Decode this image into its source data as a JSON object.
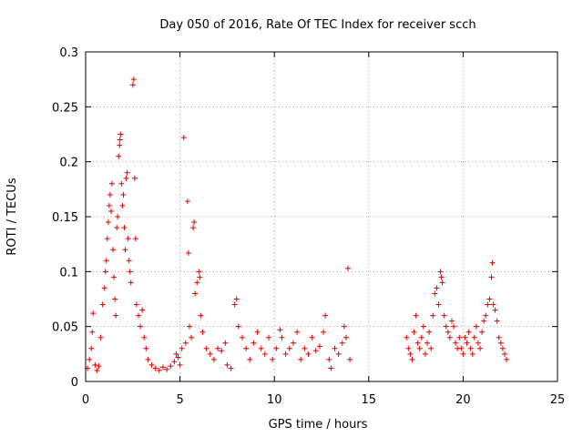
{
  "chart_data": {
    "type": "scatter",
    "title": "Day 050 of 2016, Rate Of TEC Index for receiver scch",
    "xlabel": "GPS time / hours",
    "ylabel": "ROTI / TECUs",
    "xlim": [
      0,
      25
    ],
    "ylim": [
      0,
      0.3
    ],
    "xticks": [
      0,
      5,
      10,
      15,
      20,
      25
    ],
    "xtick_labels": [
      "0",
      "5",
      "10",
      "15",
      "20",
      "25"
    ],
    "yticks": [
      0,
      0.05,
      0.1,
      0.15,
      0.2,
      0.25,
      0.3
    ],
    "ytick_labels": [
      "0",
      "0.05",
      "0.1",
      "0.15",
      "0.2",
      "0.25",
      "0.3"
    ],
    "grid": true,
    "marker": "plus",
    "color": "#e00000",
    "points": [
      [
        0.1,
        0.012
      ],
      [
        0.2,
        0.02
      ],
      [
        0.3,
        0.03
      ],
      [
        0.35,
        0.045
      ],
      [
        0.4,
        0.062
      ],
      [
        0.5,
        0.015
      ],
      [
        0.6,
        0.01
      ],
      [
        0.7,
        0.014
      ],
      [
        0.8,
        0.04
      ],
      [
        0.9,
        0.07
      ],
      [
        1.0,
        0.085
      ],
      [
        1.05,
        0.1
      ],
      [
        1.1,
        0.11
      ],
      [
        1.15,
        0.13
      ],
      [
        1.2,
        0.145
      ],
      [
        1.25,
        0.16
      ],
      [
        1.3,
        0.17
      ],
      [
        1.35,
        0.155
      ],
      [
        1.4,
        0.18
      ],
      [
        1.45,
        0.12
      ],
      [
        1.5,
        0.095
      ],
      [
        1.55,
        0.075
      ],
      [
        1.6,
        0.06
      ],
      [
        1.65,
        0.14
      ],
      [
        1.7,
        0.15
      ],
      [
        1.75,
        0.205
      ],
      [
        1.8,
        0.215
      ],
      [
        1.82,
        0.22
      ],
      [
        1.85,
        0.225
      ],
      [
        1.9,
        0.18
      ],
      [
        1.95,
        0.16
      ],
      [
        2.0,
        0.17
      ],
      [
        2.05,
        0.14
      ],
      [
        2.1,
        0.12
      ],
      [
        2.15,
        0.185
      ],
      [
        2.2,
        0.19
      ],
      [
        2.25,
        0.13
      ],
      [
        2.3,
        0.11
      ],
      [
        2.35,
        0.1
      ],
      [
        2.4,
        0.09
      ],
      [
        2.5,
        0.27
      ],
      [
        2.55,
        0.275
      ],
      [
        2.6,
        0.185
      ],
      [
        2.65,
        0.13
      ],
      [
        2.7,
        0.07
      ],
      [
        2.8,
        0.06
      ],
      [
        2.9,
        0.05
      ],
      [
        3.0,
        0.065
      ],
      [
        3.1,
        0.04
      ],
      [
        3.2,
        0.03
      ],
      [
        3.3,
        0.02
      ],
      [
        3.5,
        0.015
      ],
      [
        3.7,
        0.012
      ],
      [
        3.9,
        0.01
      ],
      [
        4.1,
        0.013
      ],
      [
        4.3,
        0.011
      ],
      [
        4.5,
        0.014
      ],
      [
        4.7,
        0.018
      ],
      [
        4.8,
        0.025
      ],
      [
        4.9,
        0.022
      ],
      [
        5.0,
        0.015
      ],
      [
        5.1,
        0.03
      ],
      [
        5.2,
        0.222
      ],
      [
        5.3,
        0.035
      ],
      [
        5.4,
        0.164
      ],
      [
        5.45,
        0.117
      ],
      [
        5.5,
        0.05
      ],
      [
        5.6,
        0.04
      ],
      [
        5.7,
        0.14
      ],
      [
        5.75,
        0.145
      ],
      [
        5.8,
        0.08
      ],
      [
        5.9,
        0.09
      ],
      [
        6.0,
        0.1
      ],
      [
        6.05,
        0.095
      ],
      [
        6.1,
        0.06
      ],
      [
        6.2,
        0.045
      ],
      [
        6.4,
        0.03
      ],
      [
        6.6,
        0.025
      ],
      [
        6.8,
        0.02
      ],
      [
        7.0,
        0.03
      ],
      [
        7.2,
        0.028
      ],
      [
        7.4,
        0.035
      ],
      [
        7.5,
        0.015
      ],
      [
        7.7,
        0.012
      ],
      [
        7.9,
        0.07
      ],
      [
        8.0,
        0.075
      ],
      [
        8.1,
        0.05
      ],
      [
        8.3,
        0.04
      ],
      [
        8.5,
        0.03
      ],
      [
        8.7,
        0.02
      ],
      [
        8.9,
        0.035
      ],
      [
        9.1,
        0.045
      ],
      [
        9.3,
        0.03
      ],
      [
        9.5,
        0.025
      ],
      [
        9.7,
        0.04
      ],
      [
        9.9,
        0.02
      ],
      [
        10.1,
        0.03
      ],
      [
        10.3,
        0.047
      ],
      [
        10.4,
        0.04
      ],
      [
        10.6,
        0.025
      ],
      [
        10.8,
        0.03
      ],
      [
        11.0,
        0.035
      ],
      [
        11.2,
        0.045
      ],
      [
        11.4,
        0.02
      ],
      [
        11.6,
        0.03
      ],
      [
        11.8,
        0.025
      ],
      [
        12.0,
        0.04
      ],
      [
        12.2,
        0.028
      ],
      [
        12.4,
        0.032
      ],
      [
        12.6,
        0.045
      ],
      [
        12.7,
        0.06
      ],
      [
        12.9,
        0.02
      ],
      [
        13.0,
        0.012
      ],
      [
        13.2,
        0.03
      ],
      [
        13.4,
        0.025
      ],
      [
        13.6,
        0.035
      ],
      [
        13.7,
        0.05
      ],
      [
        13.8,
        0.04
      ],
      [
        13.9,
        0.103
      ],
      [
        14.0,
        0.02
      ],
      [
        17.0,
        0.04
      ],
      [
        17.1,
        0.03
      ],
      [
        17.2,
        0.025
      ],
      [
        17.3,
        0.02
      ],
      [
        17.4,
        0.045
      ],
      [
        17.5,
        0.06
      ],
      [
        17.6,
        0.035
      ],
      [
        17.7,
        0.03
      ],
      [
        17.8,
        0.04
      ],
      [
        17.9,
        0.05
      ],
      [
        18.0,
        0.025
      ],
      [
        18.1,
        0.035
      ],
      [
        18.2,
        0.045
      ],
      [
        18.3,
        0.03
      ],
      [
        18.4,
        0.06
      ],
      [
        18.5,
        0.08
      ],
      [
        18.6,
        0.085
      ],
      [
        18.7,
        0.07
      ],
      [
        18.8,
        0.1
      ],
      [
        18.85,
        0.095
      ],
      [
        18.9,
        0.09
      ],
      [
        19.0,
        0.06
      ],
      [
        19.1,
        0.05
      ],
      [
        19.2,
        0.045
      ],
      [
        19.3,
        0.04
      ],
      [
        19.4,
        0.055
      ],
      [
        19.5,
        0.05
      ],
      [
        19.6,
        0.035
      ],
      [
        19.7,
        0.03
      ],
      [
        19.8,
        0.04
      ],
      [
        19.9,
        0.03
      ],
      [
        20.0,
        0.025
      ],
      [
        20.1,
        0.04
      ],
      [
        20.2,
        0.035
      ],
      [
        20.3,
        0.045
      ],
      [
        20.4,
        0.03
      ],
      [
        20.5,
        0.025
      ],
      [
        20.6,
        0.04
      ],
      [
        20.7,
        0.05
      ],
      [
        20.8,
        0.035
      ],
      [
        20.9,
        0.03
      ],
      [
        21.0,
        0.045
      ],
      [
        21.1,
        0.055
      ],
      [
        21.2,
        0.06
      ],
      [
        21.3,
        0.07
      ],
      [
        21.4,
        0.075
      ],
      [
        21.5,
        0.095
      ],
      [
        21.55,
        0.108
      ],
      [
        21.6,
        0.07
      ],
      [
        21.7,
        0.065
      ],
      [
        21.8,
        0.055
      ],
      [
        21.9,
        0.04
      ],
      [
        22.0,
        0.035
      ],
      [
        22.1,
        0.03
      ],
      [
        22.2,
        0.025
      ],
      [
        22.3,
        0.02
      ]
    ]
  }
}
